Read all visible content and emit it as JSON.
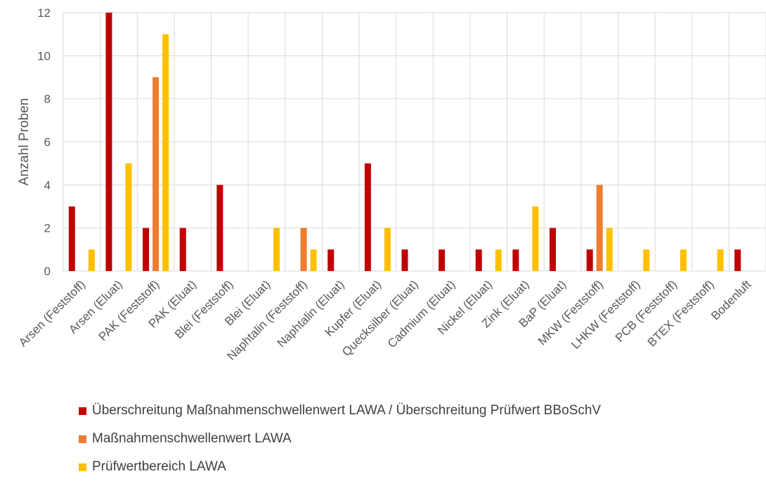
{
  "chart_data": {
    "type": "bar",
    "ylabel": "Anzahl Proben",
    "xlabel": "",
    "ylim": [
      0,
      12
    ],
    "yticks": [
      0,
      2,
      4,
      6,
      8,
      10,
      12
    ],
    "grid": true,
    "legend_position": "bottom",
    "categories": [
      "Arsen (Feststoff)",
      "Arsen (Eluat)",
      "PAK (Feststoff)",
      "PAK (Eluat)",
      "Blei (Feststoff)",
      "Blei (Eluat)",
      "Naphtalin (Feststoff)",
      "Naphtalin (Eluat)",
      "Kupfer (Eluat)",
      "Quecksilber (Eluat)",
      "Cadmium (Eluat)",
      "Nickel (Eluat)",
      "Zink (Eluat)",
      "BaP (Eluat)",
      "MKW (Feststoff)",
      "LHKW (Feststoff)",
      "PCB (Feststoff)",
      "BTEX (Feststoff)",
      "Bodenluft"
    ],
    "series": [
      {
        "name": "Überschreitung Maßnahmenschwellenwert LAWA / Überschreitung Prüfwert BBoSchV",
        "color": "#c00000",
        "values": [
          3,
          12,
          2,
          2,
          4,
          0,
          0,
          1,
          5,
          1,
          1,
          1,
          1,
          2,
          1,
          0,
          0,
          0,
          1
        ]
      },
      {
        "name": "Maßnahmenschwellenwert LAWA",
        "color": "#ed7d31",
        "values": [
          0,
          0,
          9,
          0,
          0,
          0,
          2,
          0,
          0,
          0,
          0,
          0,
          0,
          0,
          4,
          0,
          0,
          0,
          0
        ]
      },
      {
        "name": "Prüfwertbereich LAWA",
        "color": "#ffc000",
        "values": [
          1,
          5,
          11,
          0,
          0,
          2,
          1,
          0,
          2,
          0,
          0,
          1,
          3,
          0,
          2,
          1,
          1,
          1,
          0
        ]
      }
    ]
  }
}
